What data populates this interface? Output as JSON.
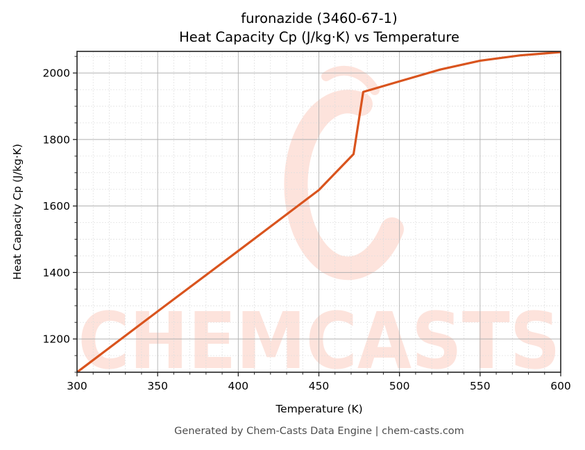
{
  "figure": {
    "title_line1": "furonazide (3460-67-1)",
    "title_line2": "Heat Capacity Cp (J/kg·K) vs Temperature",
    "footer": "Generated by Chem-Casts Data Engine | chem-casts.com",
    "watermark": "CHEMCASTS",
    "line_color": "#d9541e",
    "watermark_color": "#fde3dc"
  },
  "chart_data": {
    "type": "line",
    "title": "furonazide (3460-67-1)\nHeat Capacity Cp (J/kg·K) vs Temperature",
    "xlabel": "Temperature (K)",
    "ylabel": "Heat Capacity Cp (J/kg·K)",
    "xlim": [
      300,
      600
    ],
    "ylim": [
      1100,
      2065
    ],
    "xticks": [
      300,
      350,
      400,
      450,
      500,
      550,
      600
    ],
    "xtick_labels": [
      "300",
      "350",
      "400",
      "450",
      "500",
      "550",
      "600"
    ],
    "yticks": [
      1200,
      1400,
      1600,
      1800,
      2000
    ],
    "ytick_labels": [
      "1200",
      "1400",
      "1600",
      "1800",
      "2000"
    ],
    "grid": true,
    "minor_grid": true,
    "legend": null,
    "series": [
      {
        "name": "Cp",
        "color": "#d9541e",
        "x": [
          300,
          350,
          400,
          450,
          471.5,
          477.5,
          500,
          525,
          550,
          575,
          600
        ],
        "y": [
          1100,
          1283,
          1465,
          1648,
          1756,
          1943,
          1975,
          2010,
          2037,
          2053,
          2063
        ]
      }
    ]
  }
}
